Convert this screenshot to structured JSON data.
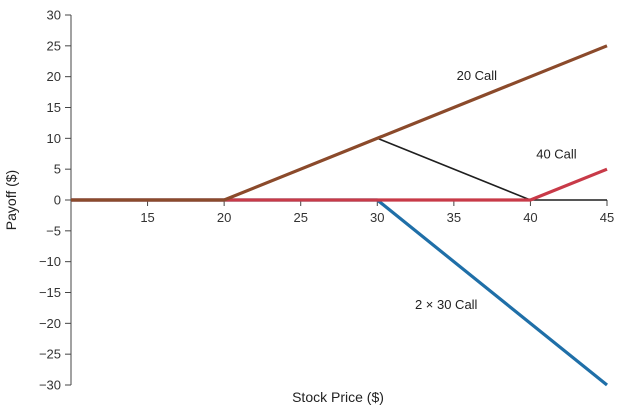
{
  "chart_data": {
    "type": "line",
    "title": "",
    "xlabel": "Stock Price ($)",
    "ylabel": "Payoff ($)",
    "xlim": [
      10,
      45
    ],
    "ylim": [
      -30,
      30
    ],
    "x_ticks": [
      15,
      20,
      25,
      30,
      35,
      40,
      45
    ],
    "y_ticks": [
      30,
      25,
      20,
      15,
      10,
      5,
      0,
      -5,
      -10,
      -15,
      -20,
      -25,
      -30
    ],
    "x_tick_labels": [
      "15",
      "20",
      "25",
      "30",
      "35",
      "40",
      "45"
    ],
    "y_tick_labels": [
      "30",
      "25",
      "20",
      "15",
      "10",
      "5",
      "0",
      "−5",
      "−10",
      "−15",
      "−20",
      "−25",
      "−30"
    ],
    "grid": false,
    "series": [
      {
        "name": "",
        "color": "#1f1f1f",
        "points": [
          [
            10,
            0
          ],
          [
            20,
            0
          ],
          [
            30,
            10
          ],
          [
            40,
            0
          ],
          [
            45,
            0
          ]
        ]
      },
      {
        "name": "2 × 30 Call",
        "color": "#1f6fa8",
        "points": [
          [
            10,
            0
          ],
          [
            30,
            0
          ],
          [
            45,
            -30
          ]
        ]
      },
      {
        "name": "40 Call",
        "color": "#c83a48",
        "points": [
          [
            10,
            0
          ],
          [
            40,
            0
          ],
          [
            45,
            5
          ]
        ]
      },
      {
        "name": "20 Call",
        "color": "#8b4a2b",
        "points": [
          [
            10,
            0
          ],
          [
            20,
            0
          ],
          [
            45,
            25
          ]
        ]
      }
    ],
    "annotations": [
      {
        "text": "20 Call",
        "x": 36.5,
        "y": 19.5
      },
      {
        "text": "40 Call",
        "x": 41.7,
        "y": 6.7
      },
      {
        "text": "2 × 30 Call",
        "x": 34.5,
        "y": -17.7
      }
    ]
  }
}
